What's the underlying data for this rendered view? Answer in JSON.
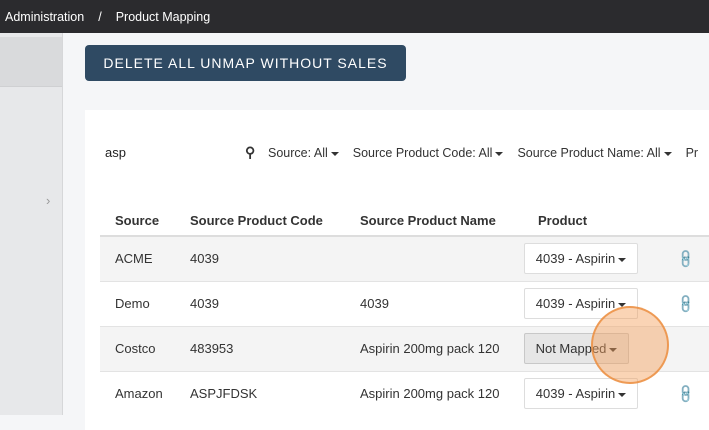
{
  "breadcrumb": {
    "items": [
      "Administration",
      "Product Mapping"
    ],
    "separator": "/"
  },
  "toolbar": {
    "delete_label": "DELETE ALL UNMAP WITHOUT SALES"
  },
  "search": {
    "value": "asp"
  },
  "filters": [
    "Source: All",
    "Source Product Code: All",
    "Source Product Name: All",
    "Pr"
  ],
  "table": {
    "headers": [
      "Source",
      "Source Product Code",
      "Source Product Name",
      "Product"
    ],
    "rows": [
      {
        "source": "ACME",
        "code": "4039",
        "name": "",
        "product": "4039 - Aspirin",
        "mapped": true
      },
      {
        "source": "Demo",
        "code": "4039",
        "name": "4039",
        "product": "4039 - Aspirin",
        "mapped": true
      },
      {
        "source": "Costco",
        "code": "483953",
        "name": "Aspirin 200mg pack 120",
        "product": "Not Mapped",
        "mapped": false
      },
      {
        "source": "Amazon",
        "code": "ASPJFDSK",
        "name": "Aspirin 200mg pack 120",
        "product": "4039 - Aspirin",
        "mapped": true
      }
    ]
  },
  "colors": {
    "topbar": "#2b2b2e",
    "button": "#2f4a63",
    "cursor_highlight": "#f5a05a"
  }
}
